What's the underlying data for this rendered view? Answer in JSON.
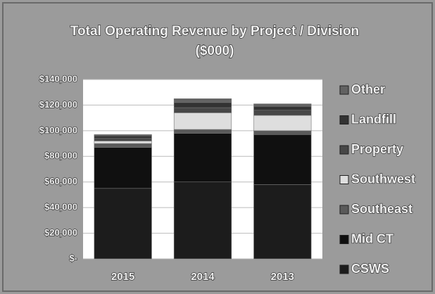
{
  "chart_data": {
    "type": "bar",
    "stacked": true,
    "title": "Total Operating Revenue by Project / Division",
    "subtitle": "($000)",
    "categories": [
      "2015",
      "2014",
      "2013"
    ],
    "series": [
      {
        "name": "CSWS",
        "color": "#1c1c1c",
        "values": [
          55000,
          60000,
          58000
        ]
      },
      {
        "name": "Mid CT",
        "color": "#101010",
        "values": [
          32000,
          38000,
          39000
        ]
      },
      {
        "name": "Southeast",
        "color": "#5a5a5a",
        "values": [
          3000,
          3000,
          3000
        ]
      },
      {
        "name": "Southwest",
        "color": "#dedede",
        "values": [
          2000,
          13000,
          12000
        ]
      },
      {
        "name": "Property",
        "color": "#474747",
        "values": [
          2000,
          4000,
          4000
        ]
      },
      {
        "name": "Landfill",
        "color": "#333333",
        "values": [
          2000,
          4000,
          3000
        ]
      },
      {
        "name": "Other",
        "color": "#626262",
        "values": [
          1000,
          3000,
          2000
        ]
      }
    ],
    "ylim": [
      0,
      140000
    ],
    "yticks": [
      {
        "value": 0,
        "label": "$-"
      },
      {
        "value": 20000,
        "label": "$20,000"
      },
      {
        "value": 40000,
        "label": "$40,000"
      },
      {
        "value": 60000,
        "label": "$60,000"
      },
      {
        "value": 80000,
        "label": "$80,000"
      },
      {
        "value": 100000,
        "label": "$100,000"
      },
      {
        "value": 120000,
        "label": "$120,000"
      },
      {
        "value": 140000,
        "label": "$140,000"
      }
    ],
    "grid": true,
    "legend": "right"
  }
}
